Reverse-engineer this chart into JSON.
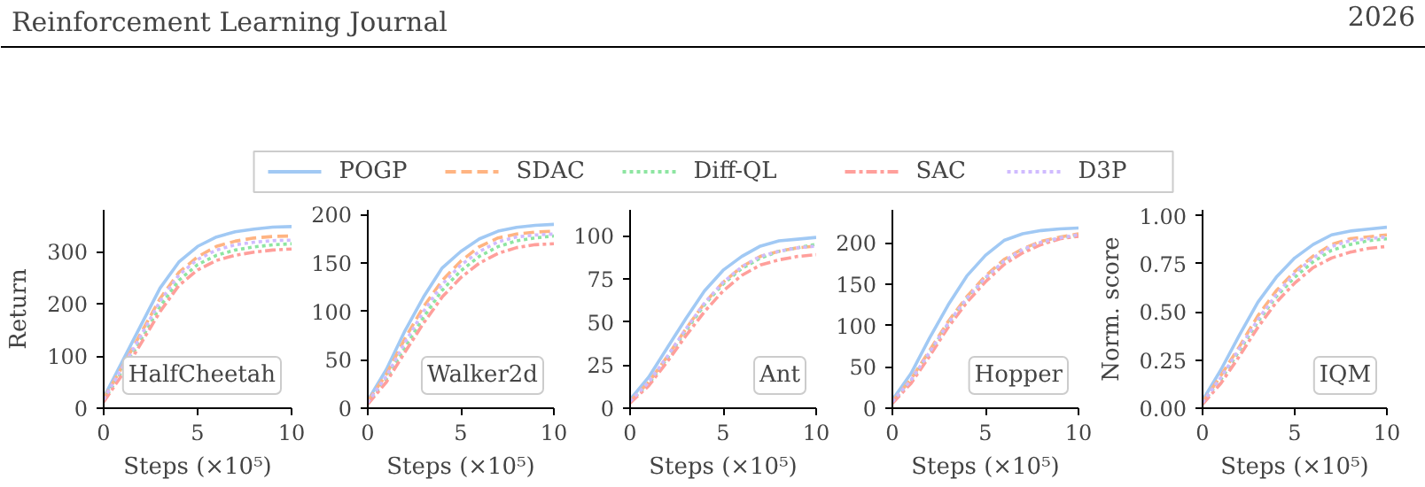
{
  "chart_data": [
    {
      "type": "line",
      "ylabel": "Return",
      "xlabel": "Steps (×10⁵)",
      "annotations": [
        "Reinforcement Learning Journal",
        "2026",
        "HalfCheetah"
      ],
      "legend": "top",
      "xlim": [
        0,
        10
      ],
      "xticks": [
        0,
        5,
        10
      ],
      "ylim": [
        0,
        380
      ],
      "yticks": [
        0,
        100,
        200,
        300
      ],
      "x": [
        0,
        1,
        2,
        3,
        4,
        5,
        6,
        7,
        8,
        9,
        10
      ],
      "series": [
        {
          "name": "POGP",
          "color": "#a1c9f4",
          "line_style": "solid",
          "values": [
            20,
            90,
            160,
            230,
            280,
            310,
            328,
            338,
            343,
            347,
            348
          ]
        },
        {
          "name": "SDAC",
          "color": "#ffb482",
          "line_style": "dashed",
          "values": [
            18,
            80,
            145,
            210,
            260,
            290,
            310,
            320,
            326,
            329,
            330
          ]
        },
        {
          "name": "Diff-QL",
          "color": "#8de5a1",
          "line_style": "dotted",
          "values": [
            15,
            72,
            132,
            195,
            245,
            275,
            293,
            303,
            309,
            313,
            315
          ]
        },
        {
          "name": "SAC",
          "color": "#ff9f9b",
          "line_style": "dashdot",
          "values": [
            12,
            65,
            125,
            185,
            235,
            265,
            283,
            293,
            299,
            303,
            305
          ]
        },
        {
          "name": "D3P",
          "color": "#d0bbff",
          "line_style": "dotted",
          "values": [
            17,
            78,
            140,
            205,
            255,
            285,
            303,
            313,
            318,
            321,
            322
          ]
        }
      ]
    },
    {
      "type": "line",
      "xlabel": "Steps (×10⁵)",
      "annotations": [
        "Walker2d"
      ],
      "xlim": [
        0,
        10
      ],
      "xticks": [
        0,
        5,
        10
      ],
      "ylim": [
        0,
        205
      ],
      "yticks": [
        0,
        50,
        100,
        150,
        200
      ],
      "x": [
        0,
        1,
        2,
        3,
        4,
        5,
        6,
        7,
        8,
        9,
        10
      ],
      "series": [
        {
          "color": "#a1c9f4",
          "line_style": "solid",
          "values": [
            8,
            40,
            80,
            115,
            145,
            162,
            175,
            183,
            187,
            189,
            190
          ]
        },
        {
          "color": "#ffb482",
          "line_style": "dashed",
          "values": [
            7,
            35,
            72,
            105,
            132,
            152,
            167,
            176,
            180,
            182,
            183
          ]
        },
        {
          "color": "#8de5a1",
          "line_style": "dotted",
          "values": [
            5,
            30,
            63,
            94,
            122,
            142,
            157,
            167,
            173,
            176,
            178
          ]
        },
        {
          "color": "#ff9f9b",
          "line_style": "dashdot",
          "values": [
            4,
            27,
            58,
            88,
            115,
            135,
            150,
            160,
            166,
            169,
            170
          ]
        },
        {
          "color": "#d0bbff",
          "line_style": "dotted",
          "values": [
            6,
            33,
            68,
            100,
            128,
            148,
            162,
            172,
            177,
            179,
            180
          ]
        }
      ]
    },
    {
      "type": "line",
      "xlabel": "Steps (×10⁵)",
      "annotations": [
        "Ant"
      ],
      "xlim": [
        0,
        10
      ],
      "xticks": [
        0,
        5,
        10
      ],
      "ylim": [
        0,
        115
      ],
      "yticks": [
        0,
        25,
        50,
        75,
        100
      ],
      "x": [
        0,
        1,
        2,
        3,
        4,
        5,
        6,
        7,
        8,
        9,
        10
      ],
      "series": [
        {
          "color": "#a1c9f4",
          "line_style": "solid",
          "values": [
            5,
            18,
            35,
            52,
            68,
            80,
            88,
            94,
            97,
            98,
            99
          ]
        },
        {
          "color": "#ffb482",
          "line_style": "dashed",
          "values": [
            4,
            15,
            30,
            46,
            61,
            73,
            82,
            88,
            91,
            93,
            94
          ]
        },
        {
          "color": "#8de5a1",
          "line_style": "dotted",
          "values": [
            4,
            14,
            29,
            45,
            60,
            72,
            81,
            87,
            91,
            93,
            95
          ]
        },
        {
          "color": "#ff9f9b",
          "line_style": "dashdot",
          "values": [
            3,
            13,
            27,
            42,
            56,
            68,
            77,
            83,
            86,
            88,
            89
          ]
        },
        {
          "color": "#d0bbff",
          "line_style": "dotted",
          "values": [
            4,
            15,
            30,
            46,
            61,
            73,
            82,
            88,
            91,
            93,
            94
          ]
        }
      ]
    },
    {
      "type": "line",
      "xlabel": "Steps (×10⁵)",
      "annotations": [
        "Hopper"
      ],
      "xlim": [
        0,
        10
      ],
      "xticks": [
        0,
        5,
        10
      ],
      "ylim": [
        0,
        240
      ],
      "yticks": [
        0,
        50,
        100,
        150,
        200
      ],
      "x": [
        0,
        1,
        2,
        3,
        4,
        5,
        6,
        7,
        8,
        9,
        10
      ],
      "series": [
        {
          "color": "#a1c9f4",
          "line_style": "solid",
          "values": [
            10,
            42,
            85,
            125,
            160,
            185,
            203,
            211,
            215,
            217,
            218
          ]
        },
        {
          "color": "#ffb482",
          "line_style": "dashed",
          "values": [
            8,
            35,
            70,
            105,
            135,
            160,
            180,
            193,
            202,
            207,
            211
          ]
        },
        {
          "color": "#8de5a1",
          "line_style": "dotted",
          "values": [
            7,
            33,
            67,
            102,
            132,
            157,
            177,
            191,
            200,
            206,
            209
          ]
        },
        {
          "color": "#ff9f9b",
          "line_style": "dashdot",
          "values": [
            6,
            30,
            63,
            98,
            128,
            153,
            174,
            188,
            198,
            205,
            208
          ]
        },
        {
          "color": "#d0bbff",
          "line_style": "dotted",
          "values": [
            8,
            34,
            68,
            103,
            133,
            158,
            178,
            192,
            201,
            206,
            210
          ]
        }
      ]
    },
    {
      "type": "line",
      "ylabel": "Norm. score",
      "xlabel": "Steps (×10⁵)",
      "annotations": [
        "IQM"
      ],
      "xlim": [
        0,
        10
      ],
      "xticks": [
        0,
        5,
        10
      ],
      "ylim": [
        0,
        1.03
      ],
      "yticks": [
        {
          "value": 0,
          "label": "0.00"
        },
        {
          "value": 0.25,
          "label": "0.25"
        },
        {
          "value": 0.5,
          "label": "0.50"
        },
        {
          "value": 0.75,
          "label": "0.75"
        },
        {
          "value": 1,
          "label": "1.00"
        }
      ],
      "x": [
        0,
        1,
        2,
        3,
        4,
        5,
        6,
        7,
        8,
        9,
        10
      ],
      "series": [
        {
          "color": "#a1c9f4",
          "line_style": "solid",
          "values": [
            0.04,
            0.2,
            0.38,
            0.55,
            0.68,
            0.78,
            0.85,
            0.9,
            0.92,
            0.93,
            0.94
          ]
        },
        {
          "color": "#ffb482",
          "line_style": "dashed",
          "values": [
            0.03,
            0.17,
            0.32,
            0.48,
            0.61,
            0.71,
            0.79,
            0.85,
            0.88,
            0.89,
            0.9
          ]
        },
        {
          "color": "#8de5a1",
          "line_style": "dotted",
          "values": [
            0.03,
            0.15,
            0.3,
            0.45,
            0.58,
            0.68,
            0.76,
            0.82,
            0.85,
            0.87,
            0.88
          ]
        },
        {
          "color": "#ff9f9b",
          "line_style": "dashdot",
          "values": [
            0.02,
            0.13,
            0.27,
            0.42,
            0.55,
            0.65,
            0.73,
            0.78,
            0.81,
            0.83,
            0.84
          ]
        },
        {
          "color": "#d0bbff",
          "line_style": "dotted",
          "values": [
            0.03,
            0.16,
            0.31,
            0.46,
            0.59,
            0.7,
            0.78,
            0.84,
            0.87,
            0.88,
            0.89
          ]
        }
      ]
    }
  ]
}
